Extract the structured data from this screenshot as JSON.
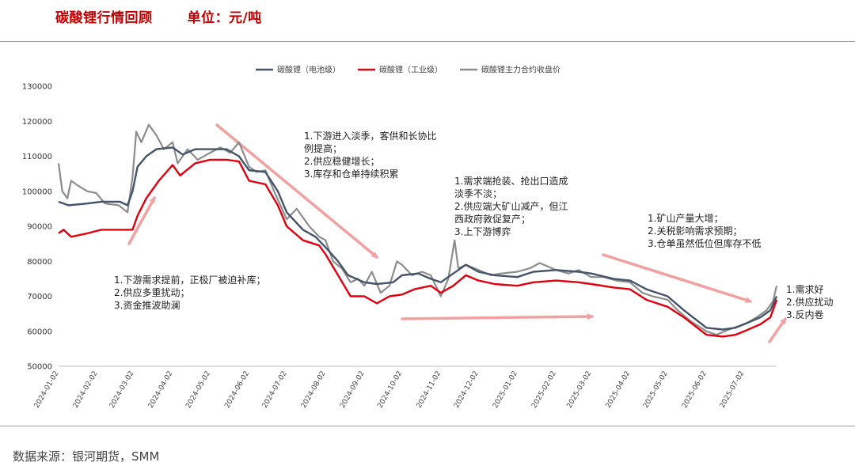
{
  "header": {
    "title": "碳酸锂行情回顾",
    "unit": "单位：元/吨"
  },
  "source": "数据来源：银河期货，SMM",
  "colors": {
    "title": "#c00000",
    "battery": "#44546a",
    "industrial": "#e0000f",
    "futures": "#8c8c8c",
    "arrow": "#f2a0a0"
  },
  "chart_data": {
    "type": "line",
    "y_unit": "元/吨",
    "ylim": [
      50000,
      130000
    ],
    "yticks": [
      50000,
      60000,
      70000,
      80000,
      90000,
      100000,
      110000,
      120000,
      130000
    ],
    "x_tick_labels": [
      "2024-01-02",
      "2024-02-02",
      "2024-03-02",
      "2024-04-02",
      "2024-05-02",
      "2024-06-02",
      "2024-07-02",
      "2024-08-02",
      "2024-09-02",
      "2024-10-02",
      "2024-11-02",
      "2024-12-02",
      "2025-01-02",
      "2025-02-02",
      "2025-03-02",
      "2025-04-02",
      "2025-05-02",
      "2025-06-02",
      "2025-07-02"
    ],
    "xlim": [
      "2024-01-02",
      "2025-07-28"
    ],
    "legend_position": "top",
    "series": [
      {
        "name": "碳酸锂（电池级）",
        "key": "battery",
        "points": [
          [
            "2024-01-02",
            97000
          ],
          [
            "2024-01-10",
            96000
          ],
          [
            "2024-01-25",
            96500
          ],
          [
            "2024-02-05",
            97000
          ],
          [
            "2024-02-20",
            97000
          ],
          [
            "2024-02-26",
            96000
          ],
          [
            "2024-03-01",
            100000
          ],
          [
            "2024-03-05",
            107000
          ],
          [
            "2024-03-12",
            110000
          ],
          [
            "2024-03-20",
            112000
          ],
          [
            "2024-04-02",
            112500
          ],
          [
            "2024-04-10",
            110500
          ],
          [
            "2024-04-20",
            112000
          ],
          [
            "2024-05-02",
            112000
          ],
          [
            "2024-05-15",
            112000
          ],
          [
            "2024-05-25",
            110000
          ],
          [
            "2024-06-02",
            106000
          ],
          [
            "2024-06-15",
            105500
          ],
          [
            "2024-06-25",
            100000
          ],
          [
            "2024-07-02",
            94000
          ],
          [
            "2024-07-15",
            89000
          ],
          [
            "2024-07-25",
            87000
          ],
          [
            "2024-08-02",
            84000
          ],
          [
            "2024-08-12",
            80000
          ],
          [
            "2024-08-20",
            76000
          ],
          [
            "2024-09-02",
            74000
          ],
          [
            "2024-09-12",
            73500
          ],
          [
            "2024-09-25",
            74000
          ],
          [
            "2024-10-02",
            76000
          ],
          [
            "2024-10-15",
            76500
          ],
          [
            "2024-10-25",
            75000
          ],
          [
            "2024-11-02",
            74000
          ],
          [
            "2024-11-12",
            76500
          ],
          [
            "2024-11-22",
            79000
          ],
          [
            "2024-12-02",
            77000
          ],
          [
            "2024-12-15",
            76000
          ],
          [
            "2025-01-02",
            75500
          ],
          [
            "2025-01-15",
            77000
          ],
          [
            "2025-02-02",
            77500
          ],
          [
            "2025-02-20",
            77000
          ],
          [
            "2025-03-02",
            76500
          ],
          [
            "2025-03-20",
            75000
          ],
          [
            "2025-04-02",
            74500
          ],
          [
            "2025-04-15",
            72000
          ],
          [
            "2025-05-02",
            70000
          ],
          [
            "2025-05-15",
            66000
          ],
          [
            "2025-06-02",
            61000
          ],
          [
            "2025-06-15",
            60500
          ],
          [
            "2025-06-25",
            61000
          ],
          [
            "2025-07-02",
            62000
          ],
          [
            "2025-07-15",
            64000
          ],
          [
            "2025-07-23",
            66000
          ],
          [
            "2025-07-28",
            70000
          ]
        ]
      },
      {
        "name": "碳酸锂（工业级）",
        "key": "industrial",
        "points": [
          [
            "2024-01-02",
            88000
          ],
          [
            "2024-01-06",
            89000
          ],
          [
            "2024-01-12",
            87000
          ],
          [
            "2024-01-25",
            88000
          ],
          [
            "2024-02-05",
            89000
          ],
          [
            "2024-02-20",
            89000
          ],
          [
            "2024-03-01",
            89000
          ],
          [
            "2024-03-05",
            93000
          ],
          [
            "2024-03-12",
            98000
          ],
          [
            "2024-03-22",
            103000
          ],
          [
            "2024-04-02",
            107500
          ],
          [
            "2024-04-08",
            104500
          ],
          [
            "2024-04-20",
            108000
          ],
          [
            "2024-05-02",
            109000
          ],
          [
            "2024-05-15",
            109000
          ],
          [
            "2024-05-25",
            108500
          ],
          [
            "2024-06-02",
            103000
          ],
          [
            "2024-06-15",
            102000
          ],
          [
            "2024-06-25",
            96000
          ],
          [
            "2024-07-02",
            90000
          ],
          [
            "2024-07-15",
            86000
          ],
          [
            "2024-07-28",
            84500
          ],
          [
            "2024-08-02",
            82000
          ],
          [
            "2024-08-12",
            76000
          ],
          [
            "2024-08-22",
            70000
          ],
          [
            "2024-09-02",
            70000
          ],
          [
            "2024-09-12",
            68000
          ],
          [
            "2024-09-22",
            70000
          ],
          [
            "2024-10-02",
            70500
          ],
          [
            "2024-10-12",
            72000
          ],
          [
            "2024-10-25",
            73000
          ],
          [
            "2024-11-02",
            71000
          ],
          [
            "2024-11-12",
            73000
          ],
          [
            "2024-11-22",
            76000
          ],
          [
            "2024-12-02",
            74500
          ],
          [
            "2024-12-15",
            73500
          ],
          [
            "2025-01-02",
            73000
          ],
          [
            "2025-01-15",
            74000
          ],
          [
            "2025-02-02",
            74500
          ],
          [
            "2025-02-20",
            74000
          ],
          [
            "2025-03-02",
            73500
          ],
          [
            "2025-03-20",
            72500
          ],
          [
            "2025-04-02",
            72000
          ],
          [
            "2025-04-15",
            69000
          ],
          [
            "2025-05-02",
            67000
          ],
          [
            "2025-05-15",
            64000
          ],
          [
            "2025-06-02",
            59000
          ],
          [
            "2025-06-15",
            58500
          ],
          [
            "2025-06-25",
            59000
          ],
          [
            "2025-07-02",
            60000
          ],
          [
            "2025-07-15",
            62000
          ],
          [
            "2025-07-23",
            64000
          ],
          [
            "2025-07-28",
            69000
          ]
        ]
      },
      {
        "name": "碳酸锂主力合约收盘价",
        "key": "futures",
        "points": [
          [
            "2024-01-02",
            108000
          ],
          [
            "2024-01-05",
            100000
          ],
          [
            "2024-01-09",
            98000
          ],
          [
            "2024-01-12",
            103000
          ],
          [
            "2024-01-18",
            101500
          ],
          [
            "2024-01-25",
            100000
          ],
          [
            "2024-02-01",
            99500
          ],
          [
            "2024-02-08",
            96500
          ],
          [
            "2024-02-19",
            96000
          ],
          [
            "2024-02-26",
            94000
          ],
          [
            "2024-03-01",
            104000
          ],
          [
            "2024-03-04",
            117000
          ],
          [
            "2024-03-08",
            114000
          ],
          [
            "2024-03-14",
            119000
          ],
          [
            "2024-03-20",
            116000
          ],
          [
            "2024-03-26",
            112000
          ],
          [
            "2024-04-02",
            114000
          ],
          [
            "2024-04-06",
            108000
          ],
          [
            "2024-04-14",
            112000
          ],
          [
            "2024-04-22",
            109000
          ],
          [
            "2024-05-02",
            111000
          ],
          [
            "2024-05-10",
            112500
          ],
          [
            "2024-05-18",
            111000
          ],
          [
            "2024-05-25",
            114000
          ],
          [
            "2024-06-02",
            107000
          ],
          [
            "2024-06-08",
            105500
          ],
          [
            "2024-06-15",
            106000
          ],
          [
            "2024-06-22",
            100000
          ],
          [
            "2024-07-02",
            92000
          ],
          [
            "2024-07-10",
            95000
          ],
          [
            "2024-07-20",
            90000
          ],
          [
            "2024-07-28",
            87000
          ],
          [
            "2024-08-02",
            86000
          ],
          [
            "2024-08-08",
            80000
          ],
          [
            "2024-08-15",
            78000
          ],
          [
            "2024-08-22",
            74000
          ],
          [
            "2024-08-28",
            75000
          ],
          [
            "2024-09-02",
            73000
          ],
          [
            "2024-09-08",
            77000
          ],
          [
            "2024-09-15",
            71000
          ],
          [
            "2024-09-22",
            73000
          ],
          [
            "2024-09-28",
            80000
          ],
          [
            "2024-10-02",
            79000
          ],
          [
            "2024-10-10",
            76000
          ],
          [
            "2024-10-18",
            77000
          ],
          [
            "2024-10-25",
            76000
          ],
          [
            "2024-11-02",
            70000
          ],
          [
            "2024-11-08",
            75000
          ],
          [
            "2024-11-13",
            86000
          ],
          [
            "2024-11-16",
            78000
          ],
          [
            "2024-11-22",
            79000
          ],
          [
            "2024-12-02",
            77500
          ],
          [
            "2024-12-12",
            76000
          ],
          [
            "2024-12-20",
            76500
          ],
          [
            "2025-01-02",
            77000
          ],
          [
            "2025-01-12",
            78000
          ],
          [
            "2025-01-20",
            79500
          ],
          [
            "2025-02-02",
            77500
          ],
          [
            "2025-02-12",
            76500
          ],
          [
            "2025-02-20",
            77500
          ],
          [
            "2025-03-02",
            75500
          ],
          [
            "2025-03-12",
            75500
          ],
          [
            "2025-03-22",
            74500
          ],
          [
            "2025-04-02",
            74000
          ],
          [
            "2025-04-12",
            71000
          ],
          [
            "2025-04-20",
            70000
          ],
          [
            "2025-05-02",
            69000
          ],
          [
            "2025-05-10",
            66000
          ],
          [
            "2025-05-20",
            63000
          ],
          [
            "2025-06-02",
            60000
          ],
          [
            "2025-06-10",
            59000
          ],
          [
            "2025-06-20",
            60500
          ],
          [
            "2025-06-28",
            61500
          ],
          [
            "2025-07-05",
            62500
          ],
          [
            "2025-07-12",
            64000
          ],
          [
            "2025-07-20",
            66000
          ],
          [
            "2025-07-25",
            68500
          ],
          [
            "2025-07-28",
            73000
          ]
        ]
      }
    ],
    "annotations": [
      {
        "text": "1.下游需求提前，正极厂被迫补库；\n2.供应多重扰动；\n3.资金推波助澜"
      },
      {
        "text": "1.下游进入淡季，客供和长协比\n例提高；\n2.供应稳健增长；\n3.库存和仓单持续积累"
      },
      {
        "text": "1.需求端抢装、抢出口造成\n淡季不淡；\n2.供应端大矿山减产，但江\n西政府敦促复产；\n3.上下游博弈"
      },
      {
        "text": "1.矿山产量大增；\n2.关税影响需求预期；\n3.仓单虽然低位但库存不低"
      },
      {
        "text": "1.需求好\n2.供应扰动\n3.反内卷"
      }
    ]
  }
}
